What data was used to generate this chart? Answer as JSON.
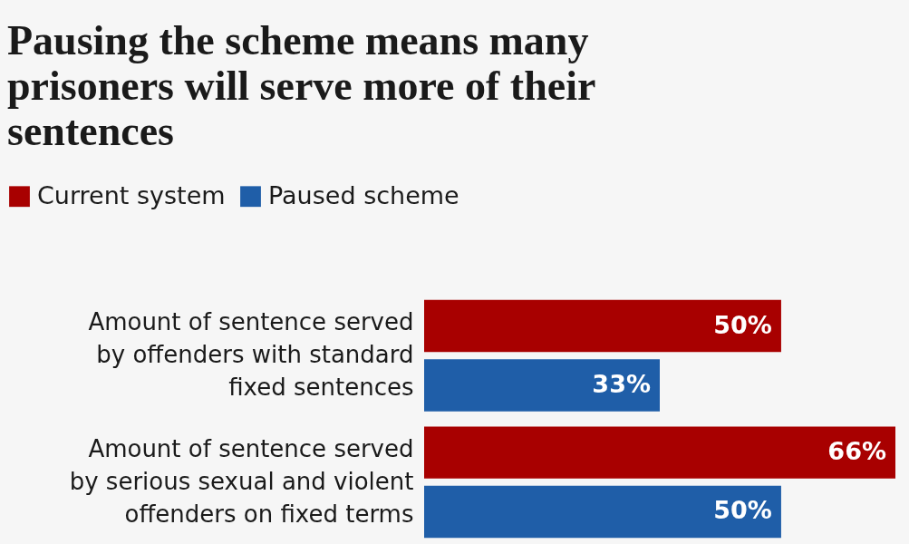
{
  "chart_data": {
    "type": "bar",
    "orientation": "horizontal",
    "title": "Pausing the scheme means many prisoners will serve more of their sentences",
    "categories": [
      "Amount of sentence served by offenders with standard fixed sentences",
      "Amount of sentence served by serious sexual and violent offenders on fixed terms"
    ],
    "series": [
      {
        "name": "Current system",
        "color": "#a80000",
        "values": [
          50,
          66
        ],
        "value_labels": [
          "50%",
          "66%"
        ]
      },
      {
        "name": "Paused scheme",
        "color": "#1f5ea8",
        "values": [
          33,
          50
        ],
        "value_labels": [
          "33%",
          "50%"
        ]
      }
    ],
    "xlim": [
      0,
      66
    ],
    "legend": "top left",
    "tick_labels": "y",
    "grid": false
  }
}
